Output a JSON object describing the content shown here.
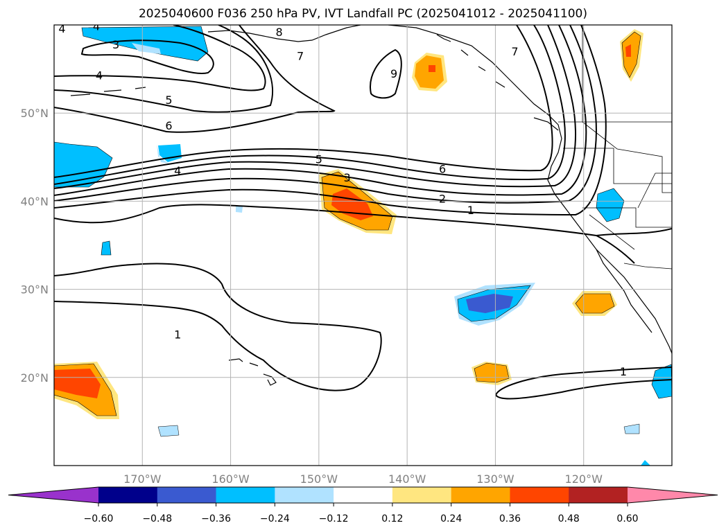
{
  "title": "2025040600 F036 250 hPa PV, IVT Landfall PC (2025041012 - 2025041100)",
  "map": {
    "lon_range": [
      -180,
      -110
    ],
    "lat_range": [
      10,
      60
    ],
    "lon_ticks": [
      {
        "value": -170,
        "label": "170°W"
      },
      {
        "value": -160,
        "label": "160°W"
      },
      {
        "value": -150,
        "label": "150°W"
      },
      {
        "value": -140,
        "label": "140°W"
      },
      {
        "value": -130,
        "label": "130°W"
      },
      {
        "value": -120,
        "label": "120°W"
      }
    ],
    "lat_ticks": [
      {
        "value": 50,
        "label": "50°N"
      },
      {
        "value": 40,
        "label": "40°N"
      },
      {
        "value": 30,
        "label": "30°N"
      },
      {
        "value": 20,
        "label": "20°N"
      }
    ],
    "gridlines": true,
    "contour_labels": [
      {
        "text": "4",
        "lon": -179.1,
        "lat": 59.6
      },
      {
        "text": "4",
        "lon": -175.2,
        "lat": 59.9
      },
      {
        "text": "3",
        "lon": -173.0,
        "lat": 57.8
      },
      {
        "text": "8",
        "lon": -154.5,
        "lat": 59.2
      },
      {
        "text": "7",
        "lon": -152.1,
        "lat": 56.5
      },
      {
        "text": "7",
        "lon": -127.8,
        "lat": 57.0
      },
      {
        "text": "9",
        "lon": -141.5,
        "lat": 54.5
      },
      {
        "text": "4",
        "lon": -174.9,
        "lat": 54.3
      },
      {
        "text": "5",
        "lon": -167.0,
        "lat": 51.5
      },
      {
        "text": "6",
        "lon": -167.0,
        "lat": 48.6
      },
      {
        "text": "4",
        "lon": -166.0,
        "lat": 43.5
      },
      {
        "text": "5",
        "lon": -150.0,
        "lat": 44.8
      },
      {
        "text": "3",
        "lon": -146.8,
        "lat": 42.7
      },
      {
        "text": "6",
        "lon": -136.0,
        "lat": 43.7
      },
      {
        "text": "2",
        "lon": -136.0,
        "lat": 40.3
      },
      {
        "text": "1",
        "lon": -132.8,
        "lat": 39.0
      },
      {
        "text": "1",
        "lon": -166.0,
        "lat": 24.9
      },
      {
        "text": "1",
        "lon": -115.5,
        "lat": 20.7
      }
    ]
  },
  "colorbar": {
    "ticks": [
      "−0.60",
      "−0.48",
      "−0.36",
      "−0.24",
      "−0.12",
      "0.12",
      "0.24",
      "0.36",
      "0.48",
      "0.60"
    ],
    "colors": [
      "#9932cc",
      "#00008b",
      "#3a5ad0",
      "#00bfff",
      "#b0e2ff",
      "#ffffff",
      "#ffe680",
      "#ffa500",
      "#ff4500",
      "#b22222",
      "#ff88aa"
    ]
  },
  "shading": {
    "colors": {
      "neg1": "#b0e2ff",
      "neg2": "#00bfff",
      "neg3": "#3a5ad0",
      "pos1": "#ffe680",
      "pos2": "#ffa500",
      "pos3": "#ff4500"
    }
  }
}
